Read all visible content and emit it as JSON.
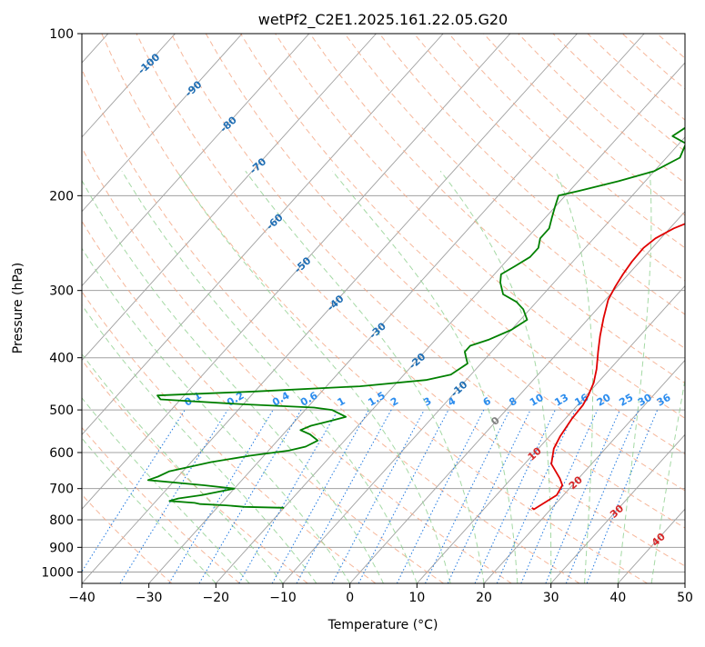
{
  "chart_data": {
    "type": "line",
    "subtype": "skew-t log-p diagram",
    "title": "wetPf2_C2E1.2025.161.22.05.G20",
    "xlabel": "Temperature (°C)",
    "ylabel": "Pressure (hPa)",
    "xlim": [
      -40,
      50
    ],
    "ylim": [
      1050,
      100
    ],
    "y_scale": "log",
    "grid": true,
    "x_ticks": [
      -40,
      -30,
      -20,
      -10,
      0,
      10,
      20,
      30,
      40,
      50
    ],
    "y_ticks": [
      1000,
      900,
      800,
      700,
      600,
      500,
      400,
      300,
      200,
      100
    ],
    "colors": {
      "temperature": "#e00000",
      "dewpoint": "#008000",
      "isotherm": "#a0a0a0",
      "isobar": "#a0a0a0",
      "dry_adiabat": "#f4a582",
      "moist_adiabat": "#8fcf8f",
      "mixing_ratio": "#1f78e0",
      "mixing_ratio_label": "#2b8cee",
      "isotherm_label_cold": "#1f6eb4",
      "isotherm_label_warm": "#d62728",
      "zero_label": "#808080"
    },
    "series": [
      {
        "key": "temperature",
        "points": [
          [
            17.0,
            760
          ],
          [
            17.5,
            765
          ],
          [
            19.0,
            720
          ],
          [
            18.5,
            690
          ],
          [
            17.2,
            670
          ],
          [
            14.0,
            630
          ],
          [
            12.3,
            590
          ],
          [
            11.6,
            560
          ],
          [
            11.0,
            520
          ],
          [
            10.8,
            490
          ],
          [
            10.3,
            470
          ],
          [
            9.4,
            445
          ],
          [
            8.0,
            420
          ],
          [
            5.9,
            390
          ],
          [
            4.1,
            365
          ],
          [
            2.2,
            338
          ],
          [
            0.4,
            312
          ],
          [
            -0.3,
            295
          ],
          [
            -0.8,
            280
          ],
          [
            -1.2,
            265
          ],
          [
            -1.3,
            250
          ],
          [
            -0.8,
            240
          ],
          [
            0.6,
            230
          ],
          [
            3.0,
            220
          ],
          [
            5.5,
            210
          ],
          [
            6.5,
            200
          ],
          [
            6.5,
            190
          ],
          [
            5.5,
            180
          ],
          [
            4.5,
            170
          ],
          [
            5.8,
            160
          ],
          [
            8.0,
            150
          ],
          [
            9.2,
            140
          ],
          [
            9.5,
            130
          ],
          [
            9.5,
            120
          ],
          [
            9.5,
            110
          ],
          [
            8.9,
            100
          ]
        ]
      },
      {
        "key": "dewpoint",
        "points": [
          [
            -20,
            760
          ],
          [
            -26,
            757
          ],
          [
            -29,
            752
          ],
          [
            -33,
            748
          ],
          [
            -34,
            744
          ],
          [
            -38,
            738
          ],
          [
            -37,
            730
          ],
          [
            -34,
            720
          ],
          [
            -30,
            700
          ],
          [
            -35,
            690
          ],
          [
            -44,
            675
          ],
          [
            -43,
            665
          ],
          [
            -42,
            650
          ],
          [
            -37,
            625
          ],
          [
            -32,
            608
          ],
          [
            -27,
            595
          ],
          [
            -25,
            585
          ],
          [
            -24,
            570
          ],
          [
            -26,
            555
          ],
          [
            -28,
            545
          ],
          [
            -27,
            535
          ],
          [
            -25,
            525
          ],
          [
            -23,
            515
          ],
          [
            -26,
            500
          ],
          [
            -29,
            495
          ],
          [
            -40,
            488
          ],
          [
            -53,
            478
          ],
          [
            -54,
            470
          ],
          [
            -40,
            462
          ],
          [
            -25,
            452
          ],
          [
            -16,
            440
          ],
          [
            -13,
            430
          ],
          [
            -12,
            410
          ],
          [
            -13,
            400
          ],
          [
            -14,
            390
          ],
          [
            -14,
            380
          ],
          [
            -12,
            370
          ],
          [
            -10,
            355
          ],
          [
            -9,
            340
          ],
          [
            -11,
            325
          ],
          [
            -13,
            315
          ],
          [
            -16,
            305
          ],
          [
            -18,
            290
          ],
          [
            -19,
            280
          ],
          [
            -18,
            270
          ],
          [
            -17,
            260
          ],
          [
            -17,
            250
          ],
          [
            -18,
            240
          ],
          [
            -18,
            230
          ],
          [
            -19,
            220
          ],
          [
            -20,
            210
          ],
          [
            -21,
            200
          ],
          [
            -18,
            195
          ],
          [
            -14,
            188
          ],
          [
            -10,
            180
          ],
          [
            -8,
            170
          ],
          [
            -9,
            160
          ],
          [
            -12,
            155
          ],
          [
            -11,
            148
          ],
          [
            -7,
            140
          ],
          [
            -7,
            130
          ],
          [
            -7,
            120
          ],
          [
            -6,
            112
          ],
          [
            -3,
            105
          ],
          [
            -1,
            100
          ]
        ]
      }
    ],
    "isotherm_labels": [
      "-100",
      "-90",
      "-80",
      "-70",
      "-60",
      "-50",
      "-40",
      "-30",
      "-20",
      "-10"
    ],
    "zero_label": "0",
    "warm_isotherm_labels": [
      "10",
      "20",
      "30",
      "40"
    ],
    "mixing_ratio_labels": [
      "0.1",
      "0.2",
      "0.4",
      "0.6",
      "1",
      "1.5",
      "2",
      "3",
      "4",
      "6",
      "8",
      "10",
      "13",
      "16",
      "20",
      "25",
      "30",
      "36"
    ]
  }
}
